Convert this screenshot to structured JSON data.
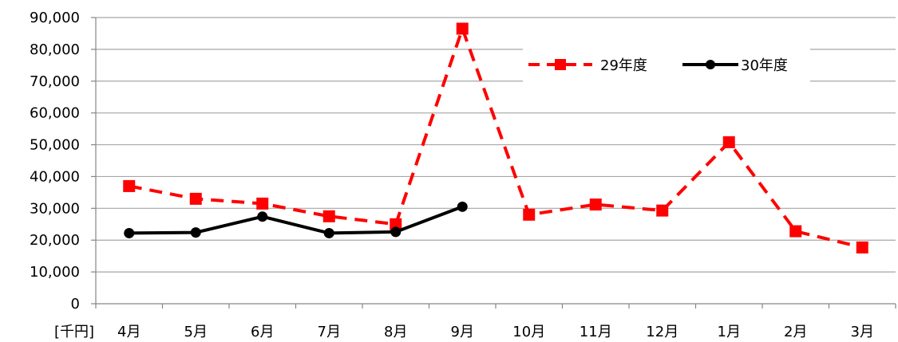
{
  "chart_data": {
    "type": "line",
    "categories": [
      "4月",
      "5月",
      "6月",
      "7月",
      "8月",
      "9月",
      "10月",
      "11月",
      "12月",
      "1月",
      "2月",
      "3月"
    ],
    "unit_label": "[千円]",
    "ylim": [
      0,
      90000
    ],
    "yticks": [
      0,
      10000,
      20000,
      30000,
      40000,
      50000,
      60000,
      70000,
      80000,
      90000
    ],
    "ytick_labels": [
      "0",
      "10,000",
      "20,000",
      "30,000",
      "40,000",
      "50,000",
      "60,000",
      "70,000",
      "80,000",
      "90,000"
    ],
    "grid": true,
    "legend_position": "top-right",
    "series": [
      {
        "name": "29年度",
        "values": [
          37000,
          33000,
          31500,
          27500,
          25000,
          86500,
          28000,
          31200,
          29300,
          50800,
          22800,
          17700
        ],
        "color": "#ff0000",
        "line_style": "dashed",
        "marker": "square"
      },
      {
        "name": "30年度",
        "values": [
          22200,
          22400,
          27400,
          22200,
          22600,
          30500,
          null,
          null,
          null,
          null,
          null,
          null
        ],
        "color": "#000000",
        "line_style": "solid",
        "marker": "circle"
      }
    ]
  }
}
